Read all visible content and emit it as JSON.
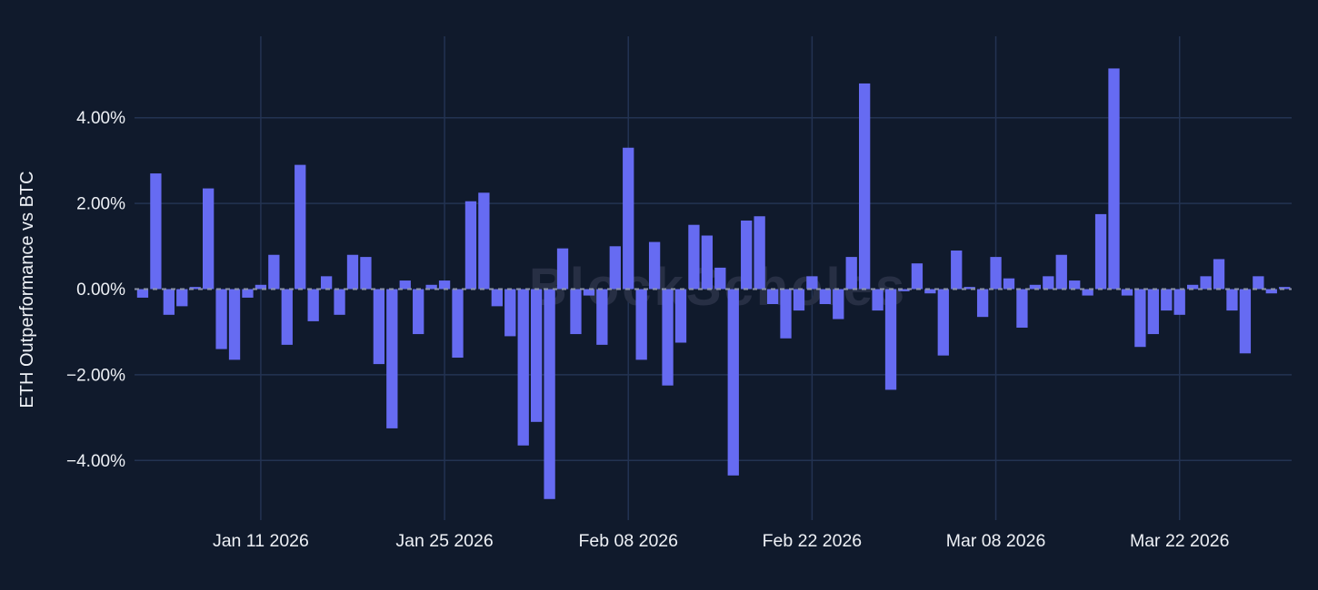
{
  "chart": {
    "y_axis_title": "ETH Outperformance vs BTC",
    "watermark": "BlockScholes",
    "colors": {
      "background": "#101a2c",
      "bar": "#666bf2",
      "gridline": "#233352",
      "zero_line": "#8b93a8",
      "tick_text": "#eef1f6",
      "watermark_text": "#272f44"
    },
    "y_ticks": [
      {
        "label": "4.00%",
        "value": 4
      },
      {
        "label": "2.00%",
        "value": 2
      },
      {
        "label": "0.00%",
        "value": 0
      },
      {
        "label": "−2.00%",
        "value": -2
      },
      {
        "label": "−4.00%",
        "value": -4
      }
    ],
    "x_ticks": [
      {
        "label": "Jan 11 2026",
        "date": "2026-01-11"
      },
      {
        "label": "Jan 25 2026",
        "date": "2026-01-25"
      },
      {
        "label": "Feb 08 2026",
        "date": "2026-02-08"
      },
      {
        "label": "Feb 22 2026",
        "date": "2026-02-22"
      },
      {
        "label": "Mar 08 2026",
        "date": "2026-03-08"
      },
      {
        "label": "Mar 22 2026",
        "date": "2026-03-22"
      }
    ]
  },
  "chart_data": {
    "type": "bar",
    "title": "",
    "xlabel": "",
    "ylabel": "ETH Outperformance vs BTC",
    "ylim": [
      -5.4,
      5.8
    ],
    "grid": true,
    "legend": false,
    "bar_color": "#666bf2",
    "x": [
      "2026-01-02",
      "2026-01-03",
      "2026-01-04",
      "2026-01-05",
      "2026-01-06",
      "2026-01-07",
      "2026-01-08",
      "2026-01-09",
      "2026-01-10",
      "2026-01-11",
      "2026-01-12",
      "2026-01-13",
      "2026-01-14",
      "2026-01-15",
      "2026-01-16",
      "2026-01-17",
      "2026-01-18",
      "2026-01-19",
      "2026-01-20",
      "2026-01-21",
      "2026-01-22",
      "2026-01-23",
      "2026-01-24",
      "2026-01-25",
      "2026-01-26",
      "2026-01-27",
      "2026-01-28",
      "2026-01-29",
      "2026-01-30",
      "2026-01-31",
      "2026-02-01",
      "2026-02-02",
      "2026-02-03",
      "2026-02-04",
      "2026-02-05",
      "2026-02-06",
      "2026-02-07",
      "2026-02-08",
      "2026-02-09",
      "2026-02-10",
      "2026-02-11",
      "2026-02-12",
      "2026-02-13",
      "2026-02-14",
      "2026-02-15",
      "2026-02-16",
      "2026-02-17",
      "2026-02-18",
      "2026-02-19",
      "2026-02-20",
      "2026-02-21",
      "2026-02-22",
      "2026-02-23",
      "2026-02-24",
      "2026-02-25",
      "2026-02-26",
      "2026-02-27",
      "2026-02-28",
      "2026-03-01",
      "2026-03-02",
      "2026-03-03",
      "2026-03-04",
      "2026-03-05",
      "2026-03-06",
      "2026-03-07",
      "2026-03-08",
      "2026-03-09",
      "2026-03-10",
      "2026-03-11",
      "2026-03-12",
      "2026-03-13",
      "2026-03-14",
      "2026-03-15",
      "2026-03-16",
      "2026-03-17",
      "2026-03-18",
      "2026-03-19",
      "2026-03-20",
      "2026-03-21",
      "2026-03-22",
      "2026-03-23",
      "2026-03-24",
      "2026-03-25",
      "2026-03-26",
      "2026-03-27",
      "2026-03-28",
      "2026-03-29",
      "2026-03-30"
    ],
    "values": [
      -0.2,
      2.7,
      -0.6,
      -0.4,
      0.05,
      2.35,
      -1.4,
      -1.65,
      -0.2,
      0.1,
      0.8,
      -1.3,
      2.9,
      -0.75,
      0.3,
      -0.6,
      0.8,
      0.75,
      -1.75,
      -3.25,
      0.2,
      -1.05,
      0.1,
      0.2,
      -1.6,
      2.05,
      2.25,
      -0.4,
      -1.1,
      -3.65,
      -3.1,
      -4.9,
      0.95,
      -1.05,
      -0.15,
      -1.3,
      1.0,
      3.3,
      -1.65,
      1.1,
      -2.25,
      -1.25,
      1.5,
      1.25,
      0.5,
      -4.35,
      1.6,
      1.7,
      -0.35,
      -1.15,
      -0.5,
      0.3,
      -0.35,
      -0.7,
      0.75,
      4.8,
      -0.5,
      -2.35,
      -0.05,
      0.6,
      -0.1,
      -1.55,
      0.9,
      0.05,
      -0.65,
      0.75,
      0.25,
      -0.9,
      0.1,
      0.3,
      0.8,
      0.2,
      -0.15,
      1.75,
      5.15,
      -0.15,
      -1.35,
      -1.05,
      -0.5,
      -0.6,
      0.1,
      0.3,
      0.7,
      -0.5,
      -1.5,
      0.3,
      -0.1,
      0.05
    ]
  }
}
